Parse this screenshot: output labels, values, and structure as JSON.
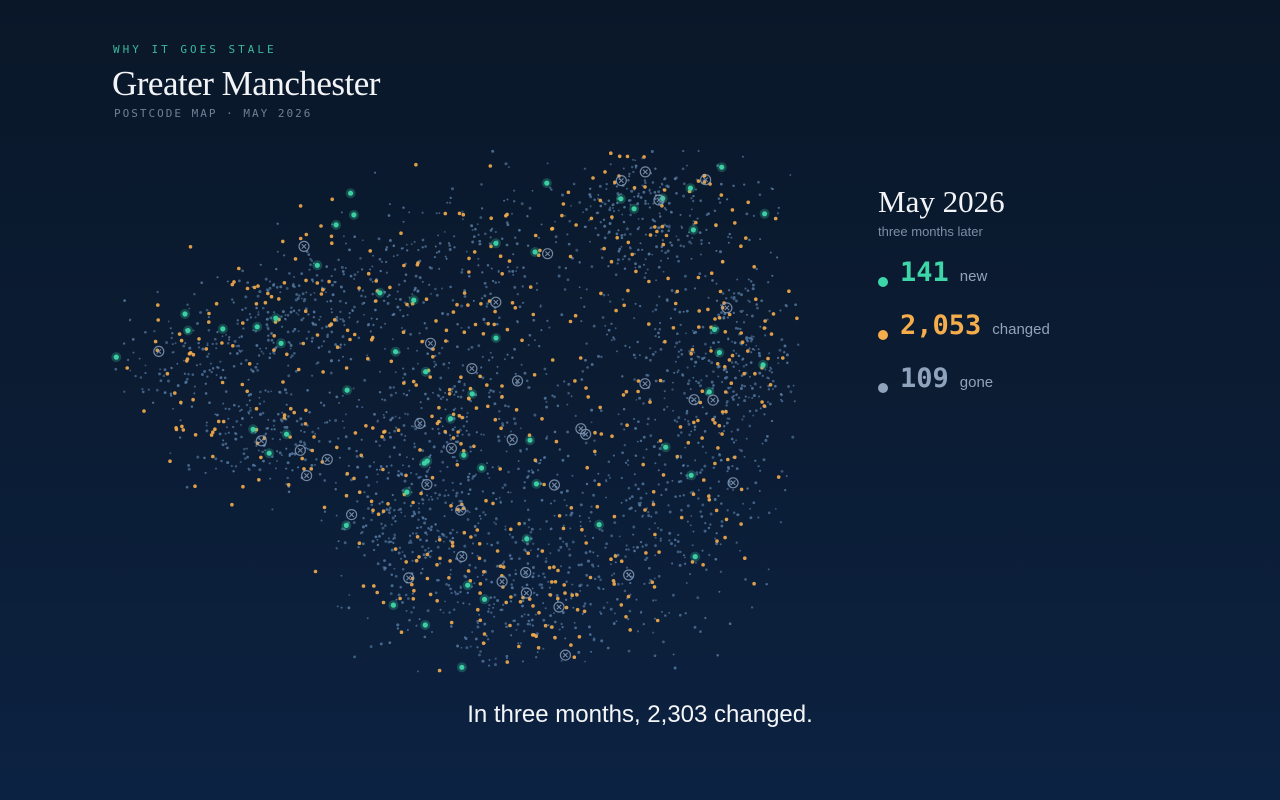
{
  "header": {
    "eyebrow": "WHY IT GOES STALE",
    "title": "Greater Manchester",
    "subtitle": "POSTCODE MAP · MAY 2026"
  },
  "panel": {
    "title": "May 2026",
    "subtitle": "three months later",
    "stats": [
      {
        "value": "141",
        "label": "new",
        "color": "#3dd6a8"
      },
      {
        "value": "2,053",
        "label": "changed",
        "color": "#f5ad4c"
      },
      {
        "value": "109",
        "label": "gone",
        "color": "#8fa3bd"
      }
    ]
  },
  "caption": "In three months, 2,303 changed."
}
